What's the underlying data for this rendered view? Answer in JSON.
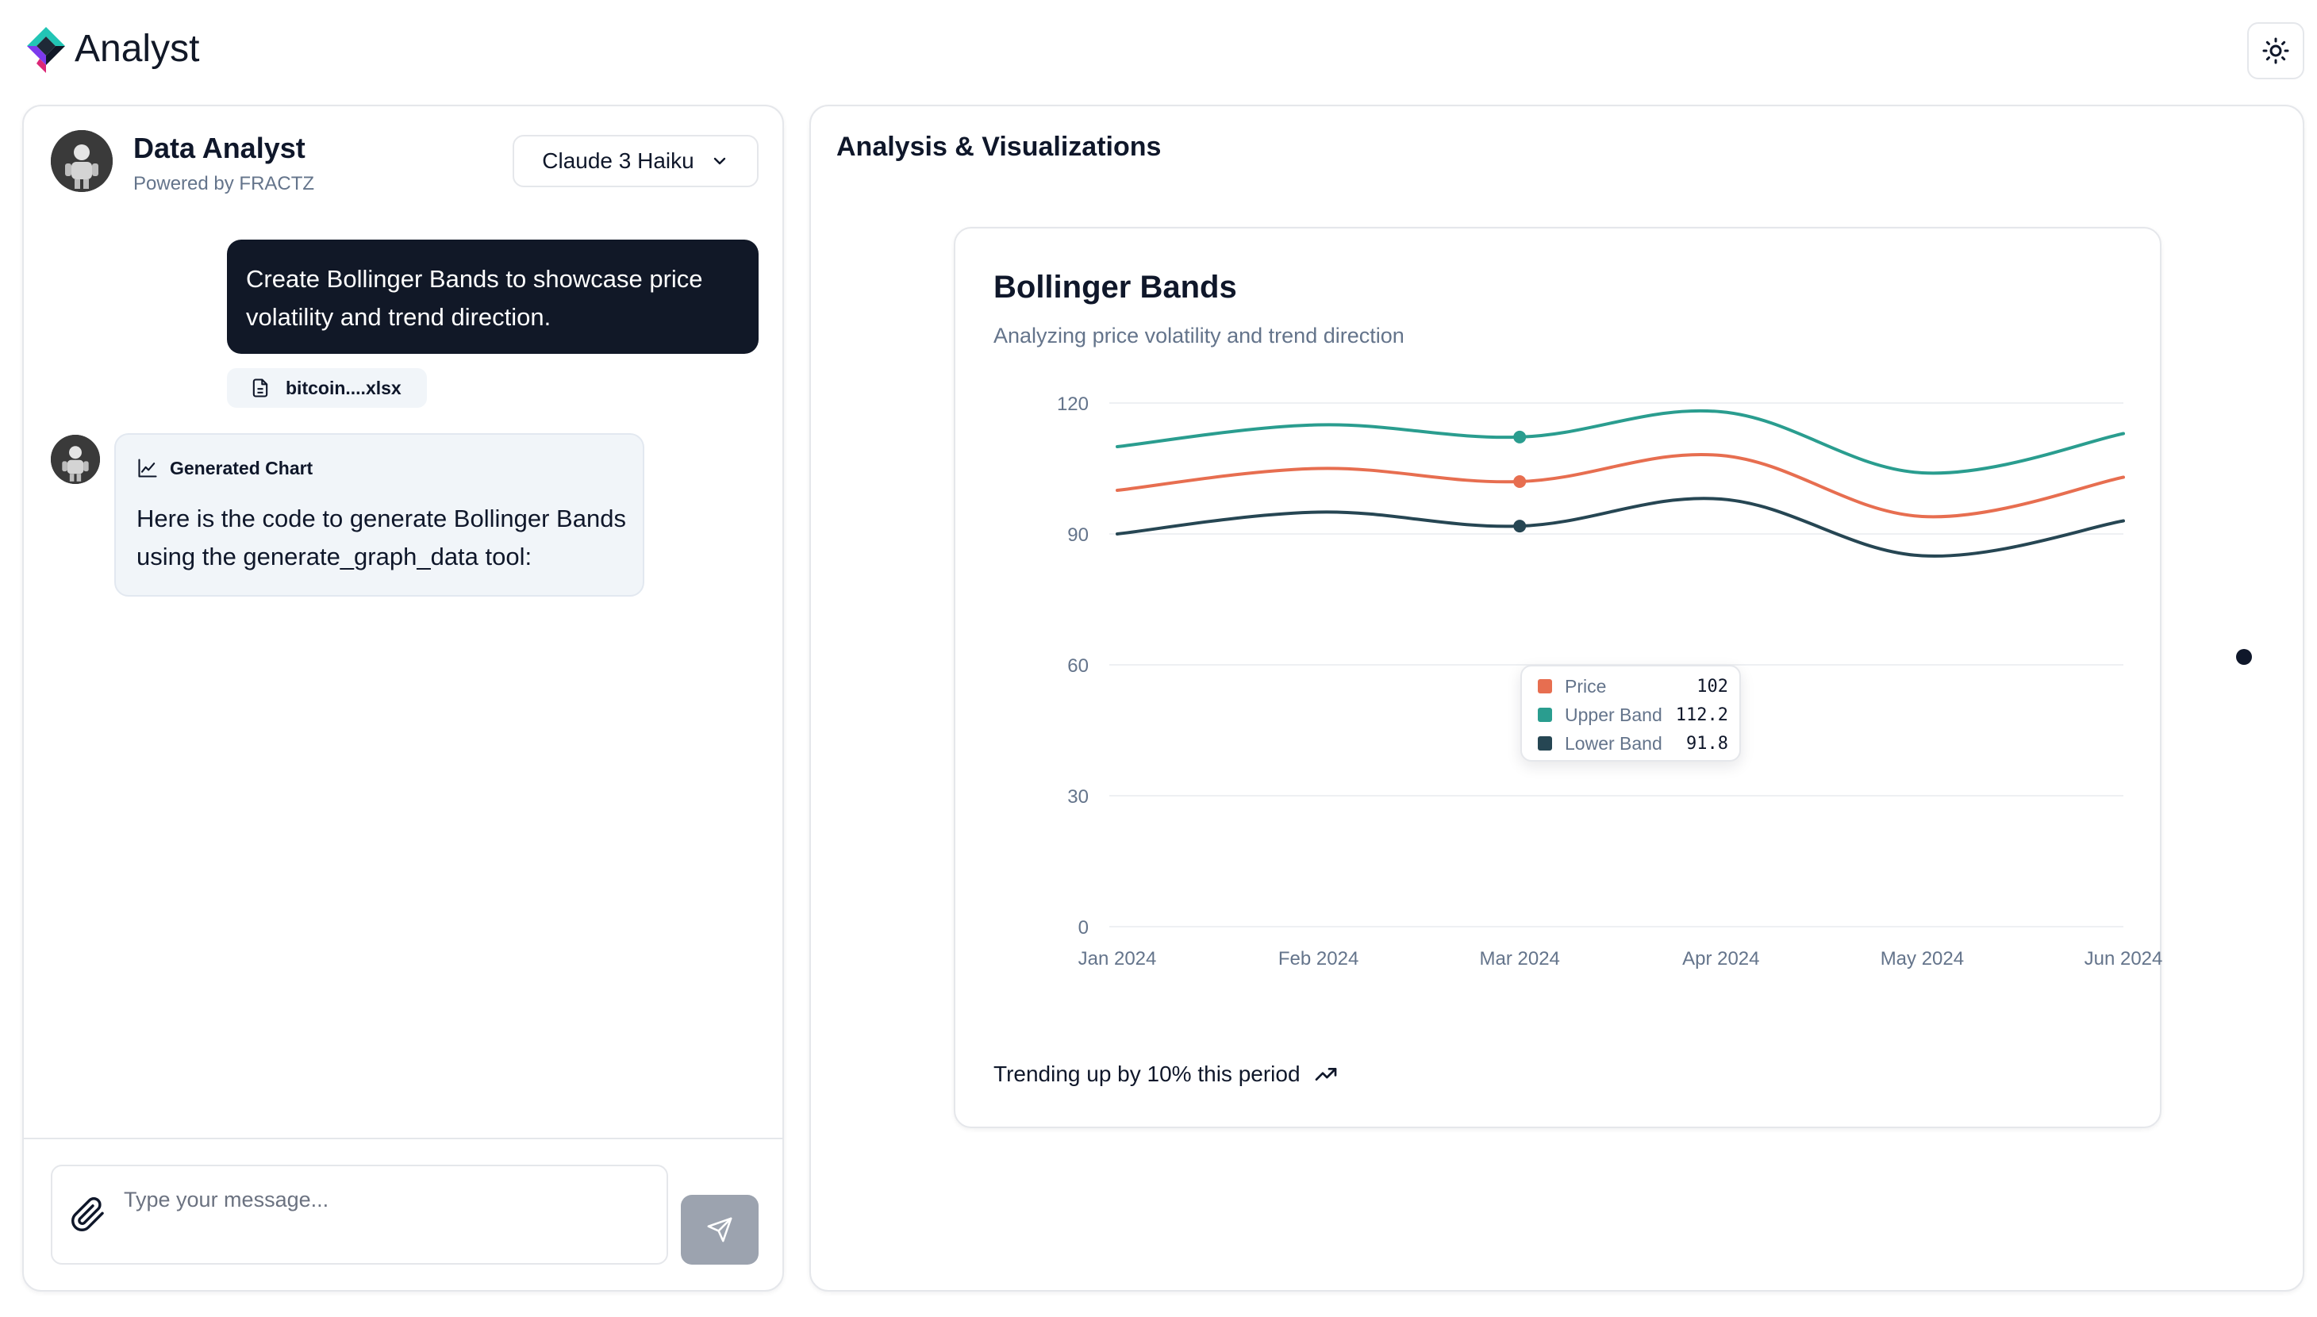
{
  "app": {
    "title": "Analyst",
    "theme_toggle_icon": "sun-icon"
  },
  "chat": {
    "agent_name": "Data Analyst",
    "agent_subtitle": "Powered by FRACTZ",
    "model": {
      "selected": "Claude 3 Haiku",
      "icon": "chevron-down-icon"
    },
    "messages": [
      {
        "role": "user",
        "text": "Create Bollinger Bands to showcase price volatility and trend direction.",
        "attachment": "bitcoin....xlsx"
      },
      {
        "role": "assistant",
        "badge": "Generated Chart",
        "text": "Here is the code to generate Bollinger Bands using the generate_graph_data tool:"
      }
    ],
    "input": {
      "placeholder": "Type your message...",
      "value": ""
    }
  },
  "panel": {
    "title": "Analysis & Visualizations",
    "chart": {
      "title": "Bollinger Bands",
      "subtitle": "Analyzing price volatility and trend direction",
      "footer": "Trending up by 10% this period",
      "tooltip": {
        "rows": [
          {
            "label": "Price",
            "value": "102",
            "color": "#e76e50"
          },
          {
            "label": "Upper Band",
            "value": "112.2",
            "color": "#2a9d8f"
          },
          {
            "label": "Lower Band",
            "value": "91.8",
            "color": "#264653"
          }
        ]
      }
    }
  },
  "chart_data": {
    "type": "line",
    "title": "Bollinger Bands",
    "subtitle": "Analyzing price volatility and trend direction",
    "categories": [
      "Jan 2024",
      "Feb 2024",
      "Mar 2024",
      "Apr 2024",
      "May 2024",
      "Jun 2024"
    ],
    "series": [
      {
        "name": "Upper Band",
        "color": "#2a9d8f",
        "values": [
          110,
          115,
          112.2,
          118,
          104,
          113
        ]
      },
      {
        "name": "Price",
        "color": "#e76e50",
        "values": [
          100,
          105,
          102,
          108,
          94,
          103
        ]
      },
      {
        "name": "Lower Band",
        "color": "#264653",
        "values": [
          90,
          95,
          91.8,
          98,
          85,
          93
        ]
      }
    ],
    "yticks": [
      0,
      30,
      60,
      90,
      120
    ],
    "ylim": [
      0,
      120
    ],
    "grid": true,
    "active_index": 2,
    "legend": "tooltip"
  }
}
